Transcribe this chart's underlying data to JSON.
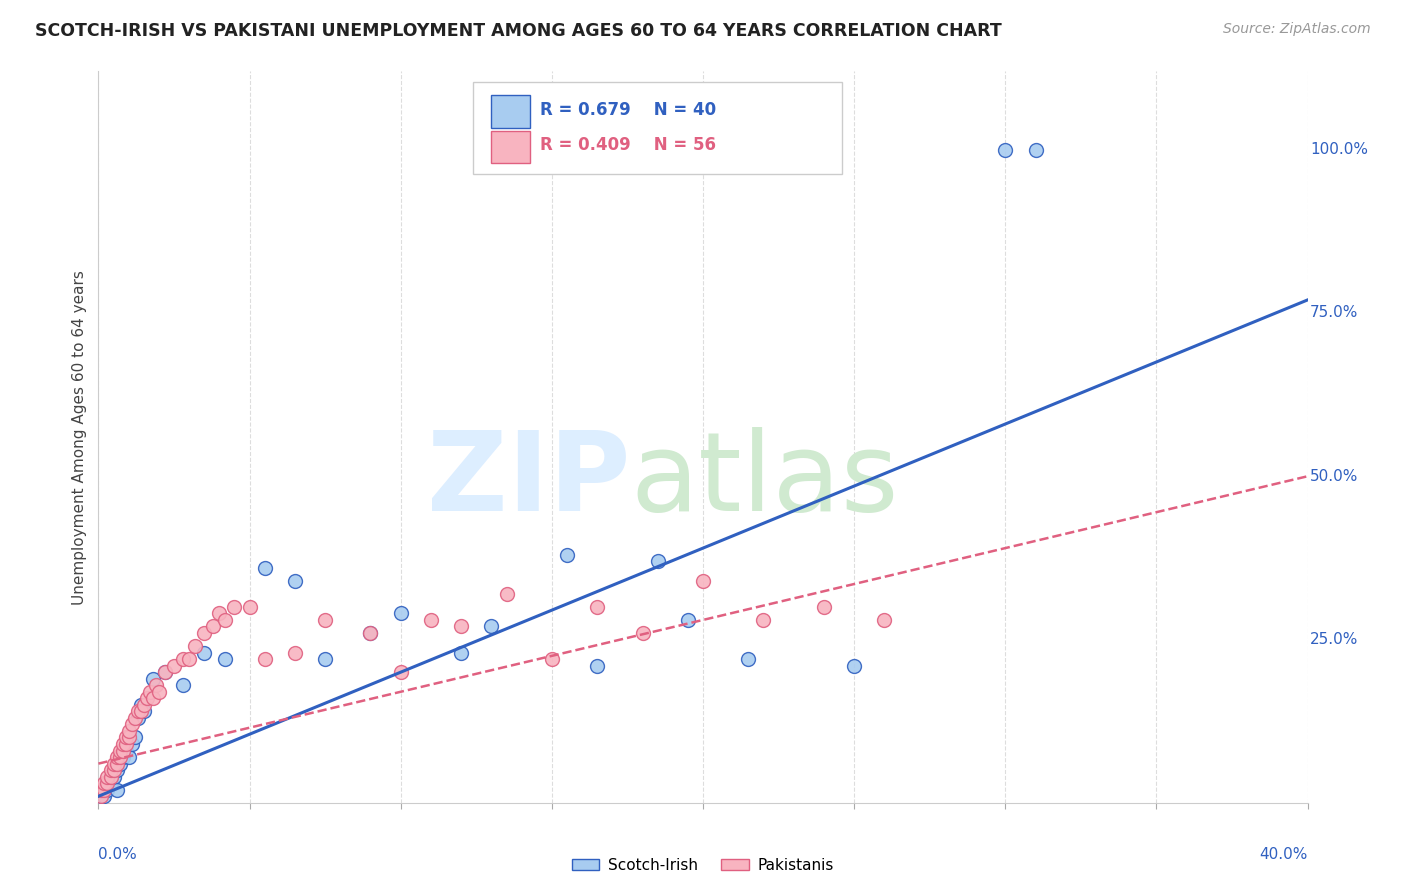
{
  "title": "SCOTCH-IRISH VS PAKISTANI UNEMPLOYMENT AMONG AGES 60 TO 64 YEARS CORRELATION CHART",
  "source": "Source: ZipAtlas.com",
  "ylabel": "Unemployment Among Ages 60 to 64 years",
  "xmin": 0.0,
  "xmax": 0.4,
  "ymin": 0.0,
  "ymax": 1.12,
  "scotch_irish_R": 0.679,
  "scotch_irish_N": 40,
  "pakistani_R": 0.409,
  "pakistani_N": 56,
  "scotch_irish_color": "#A8CCF0",
  "pakistani_color": "#F8B4C0",
  "scotch_irish_line_color": "#3060C0",
  "pakistani_line_color": "#E06080",
  "legend_label_1": "Scotch-Irish",
  "legend_label_2": "Pakistanis",
  "si_line_x0": 0.0,
  "si_line_y0": 0.01,
  "si_line_x1": 0.4,
  "si_line_y1": 0.77,
  "pk_line_x0": 0.0,
  "pk_line_y0": 0.06,
  "pk_line_x1": 0.4,
  "pk_line_y1": 0.5,
  "scotch_irish_x": [
    0.001,
    0.002,
    0.002,
    0.003,
    0.003,
    0.004,
    0.004,
    0.005,
    0.005,
    0.006,
    0.006,
    0.007,
    0.008,
    0.009,
    0.01,
    0.011,
    0.012,
    0.013,
    0.014,
    0.015,
    0.018,
    0.022,
    0.028,
    0.035,
    0.042,
    0.055,
    0.065,
    0.075,
    0.09,
    0.1,
    0.12,
    0.13,
    0.155,
    0.165,
    0.185,
    0.195,
    0.215,
    0.25,
    0.3,
    0.31
  ],
  "scotch_irish_y": [
    0.01,
    0.01,
    0.02,
    0.02,
    0.03,
    0.03,
    0.04,
    0.04,
    0.05,
    0.02,
    0.05,
    0.06,
    0.07,
    0.08,
    0.07,
    0.09,
    0.1,
    0.13,
    0.15,
    0.14,
    0.19,
    0.2,
    0.18,
    0.23,
    0.22,
    0.36,
    0.34,
    0.22,
    0.26,
    0.29,
    0.23,
    0.27,
    0.38,
    0.21,
    0.37,
    0.28,
    0.22,
    0.21,
    1.0,
    1.0
  ],
  "pakistani_x": [
    0.001,
    0.001,
    0.002,
    0.002,
    0.003,
    0.003,
    0.004,
    0.004,
    0.005,
    0.005,
    0.006,
    0.006,
    0.007,
    0.007,
    0.008,
    0.008,
    0.009,
    0.009,
    0.01,
    0.01,
    0.011,
    0.012,
    0.013,
    0.014,
    0.015,
    0.016,
    0.017,
    0.018,
    0.019,
    0.02,
    0.022,
    0.025,
    0.028,
    0.03,
    0.032,
    0.035,
    0.038,
    0.04,
    0.042,
    0.045,
    0.05,
    0.055,
    0.065,
    0.075,
    0.09,
    0.1,
    0.11,
    0.12,
    0.135,
    0.15,
    0.165,
    0.18,
    0.2,
    0.22,
    0.24,
    0.26
  ],
  "pakistani_y": [
    0.01,
    0.02,
    0.02,
    0.03,
    0.03,
    0.04,
    0.04,
    0.05,
    0.05,
    0.06,
    0.06,
    0.07,
    0.07,
    0.08,
    0.08,
    0.09,
    0.09,
    0.1,
    0.1,
    0.11,
    0.12,
    0.13,
    0.14,
    0.14,
    0.15,
    0.16,
    0.17,
    0.16,
    0.18,
    0.17,
    0.2,
    0.21,
    0.22,
    0.22,
    0.24,
    0.26,
    0.27,
    0.29,
    0.28,
    0.3,
    0.3,
    0.22,
    0.23,
    0.28,
    0.26,
    0.2,
    0.28,
    0.27,
    0.32,
    0.22,
    0.3,
    0.26,
    0.34,
    0.28,
    0.3,
    0.28
  ]
}
